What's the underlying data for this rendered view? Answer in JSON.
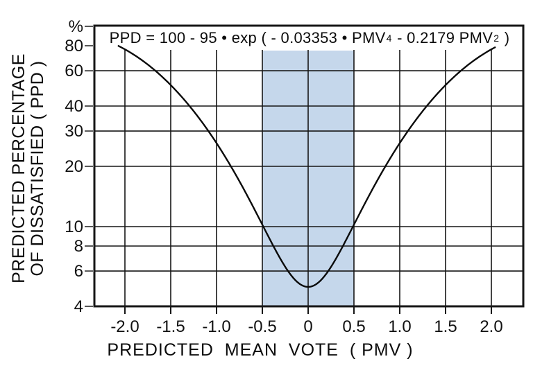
{
  "chart_data": {
    "type": "line",
    "formula": {
      "plain": "PPD = 100 - 95 • exp ( - 0.03353 • PMV^4 - 0.2179 PMV^2 )",
      "parts": [
        {
          "text": "PPD = 100 - 95 • exp ( - 0.03353 • PMV",
          "sup": false
        },
        {
          "text": "4",
          "sup": true
        },
        {
          "text": " - 0.2179 PMV",
          "sup": false
        },
        {
          "text": "2",
          "sup": true
        },
        {
          "text": " )",
          "sup": false
        }
      ]
    },
    "xlabel": "PREDICTED  MEAN  VOTE  ( PMV )",
    "ylabel_lines": [
      "PREDICTED  PERCENTAGE",
      "OF  DISSATISFIED  ( PPD )"
    ],
    "x_axis": {
      "scale": "linear",
      "min": -2.33,
      "max": 2.35,
      "ticks": [
        {
          "label": "-2.0",
          "value": -2.0
        },
        {
          "label": "-1.5",
          "value": -1.5
        },
        {
          "label": "-1.0",
          "value": -1.0
        },
        {
          "label": "-0.5",
          "value": -0.5
        },
        {
          "label": "0",
          "value": 0.0
        },
        {
          "label": "0.5",
          "value": 0.5
        },
        {
          "label": "1.0",
          "value": 1.0
        },
        {
          "label": "1.5",
          "value": 1.5
        },
        {
          "label": "2.0",
          "value": 2.0
        }
      ],
      "gridlines": [
        -2.0,
        -1.5,
        -1.0,
        -0.5,
        0.0,
        0.5,
        1.0,
        1.5,
        2.0
      ]
    },
    "y_axis": {
      "scale": "log",
      "min": 4,
      "max": 100,
      "unit_label": "%",
      "ticks": [
        {
          "label": "80",
          "value": 80
        },
        {
          "label": "60",
          "value": 60
        },
        {
          "label": "40",
          "value": 40
        },
        {
          "label": "30",
          "value": 30
        },
        {
          "label": "20",
          "value": 20
        },
        {
          "label": "10",
          "value": 10
        },
        {
          "label": "8",
          "value": 8
        },
        {
          "label": "6",
          "value": 6
        },
        {
          "label": "4",
          "value": 4
        }
      ],
      "gridlines": [
        60,
        40,
        30,
        20,
        10,
        8,
        6
      ]
    },
    "comfort_band": {
      "pmv_from": -0.5,
      "pmv_to": 0.5,
      "fill": "#c5d7eb"
    },
    "curve": {
      "color": "#0b0b0b",
      "model": "PPD = 100 - 95 * exp( -(0.03353*PMV^4 + 0.2179*PMV^2) )",
      "coeff_pmv4": 0.03353,
      "coeff_pmv2": 0.2179,
      "pmv_domain": [
        -2.07,
        2.04
      ],
      "points": [
        {
          "pmv": -2.0,
          "ppd": 76.8
        },
        {
          "pmv": -1.5,
          "ppd": 50.9
        },
        {
          "pmv": -1.0,
          "ppd": 26.1
        },
        {
          "pmv": -0.5,
          "ppd": 10.2
        },
        {
          "pmv": 0.0,
          "ppd": 5.0
        },
        {
          "pmv": 0.5,
          "ppd": 10.2
        },
        {
          "pmv": 1.0,
          "ppd": 26.1
        },
        {
          "pmv": 1.5,
          "ppd": 50.9
        },
        {
          "pmv": 2.0,
          "ppd": 76.8
        }
      ]
    },
    "colors": {
      "axis": "#161616",
      "text": "#111111",
      "band": "#c5d7eb",
      "background": "#ffffff"
    }
  }
}
